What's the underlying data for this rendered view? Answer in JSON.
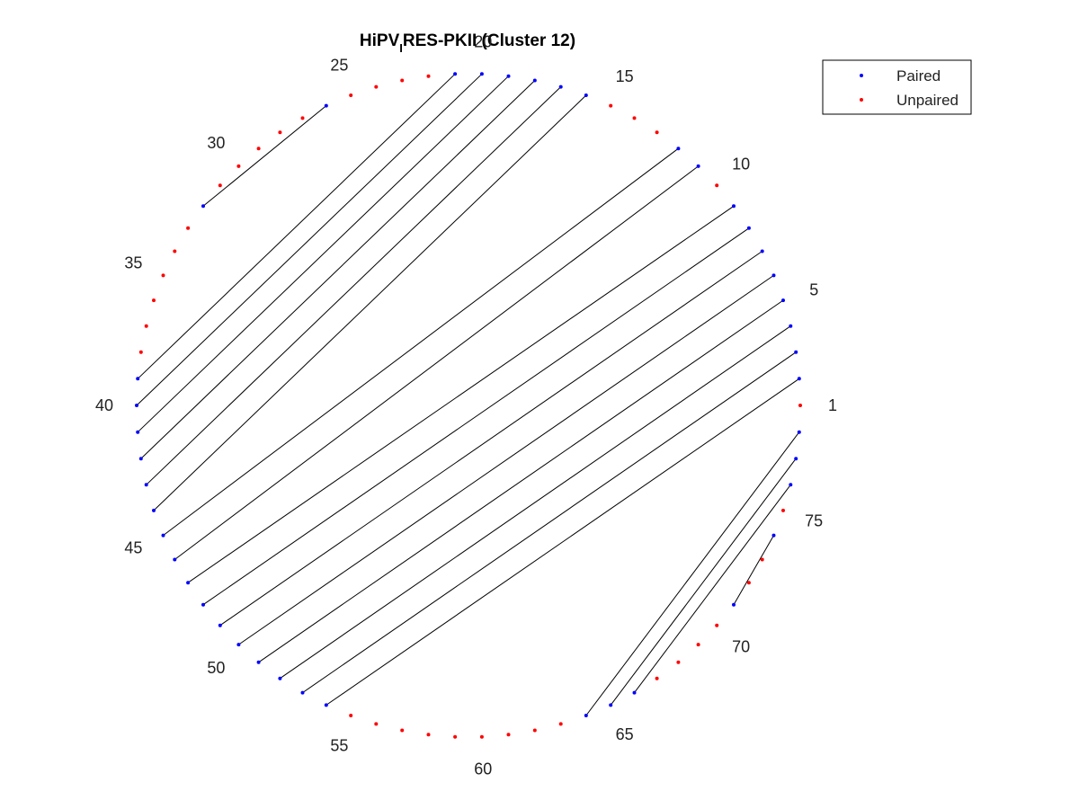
{
  "title": {
    "prefix": "HiPV",
    "subscript": "I",
    "suffix": "RES-PKII (Cluster 12)"
  },
  "legend": [
    {
      "label": "Paired",
      "color": "#0000ff"
    },
    {
      "label": "Unpaired",
      "color": "#ff0000"
    }
  ],
  "chart_data": {
    "type": "arc-diagram",
    "sequence_length": 78,
    "position_labels": [
      1,
      5,
      10,
      15,
      20,
      25,
      30,
      35,
      40,
      45,
      50,
      55,
      60,
      65,
      70,
      75
    ],
    "pairs": [
      [
        2,
        54
      ],
      [
        3,
        53
      ],
      [
        4,
        52
      ],
      [
        5,
        51
      ],
      [
        6,
        50
      ],
      [
        7,
        49
      ],
      [
        8,
        48
      ],
      [
        9,
        47
      ],
      [
        11,
        46
      ],
      [
        12,
        45
      ],
      [
        16,
        44
      ],
      [
        17,
        43
      ],
      [
        18,
        42
      ],
      [
        19,
        41
      ],
      [
        20,
        40
      ],
      [
        21,
        39
      ],
      [
        26,
        32
      ],
      [
        64,
        78
      ],
      [
        65,
        77
      ],
      [
        66,
        76
      ],
      [
        71,
        74
      ]
    ],
    "colors": {
      "paired": "#0000ff",
      "unpaired": "#ff0000",
      "link": "#000000"
    }
  }
}
